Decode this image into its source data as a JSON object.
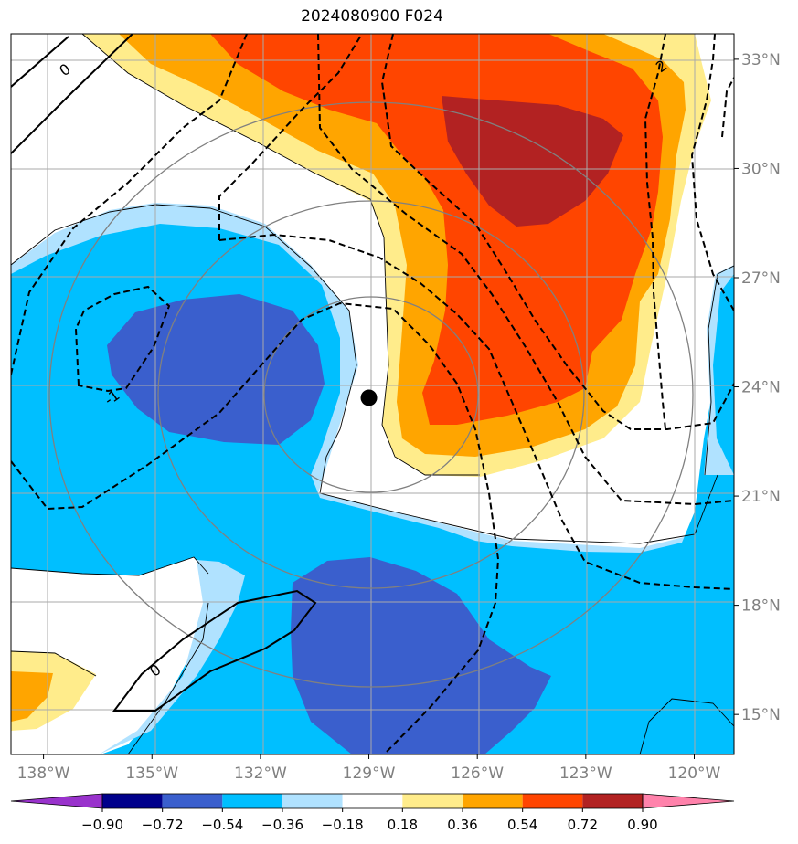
{
  "chart_data": {
    "type": "heatmap",
    "title": "2024080900 F024",
    "x_ticks": [
      "138°W",
      "135°W",
      "132°W",
      "129°W",
      "126°W",
      "123°W",
      "120°W"
    ],
    "x_tick_values": [
      -138,
      -135,
      -132,
      -129,
      -126,
      -123,
      -120
    ],
    "y_ticks": [
      "33°N",
      "30°N",
      "27°N",
      "24°N",
      "21°N",
      "18°N",
      "15°N"
    ],
    "y_tick_values": [
      33,
      30,
      27,
      24,
      21,
      18,
      15
    ],
    "xlim": [
      -138.9,
      -118.9
    ],
    "ylim": [
      13.9,
      33.7
    ],
    "grid": true,
    "colorbar": {
      "tick_labels": [
        "−0.90",
        "−0.72",
        "−0.54",
        "−0.36",
        "−0.18",
        "0.18",
        "0.36",
        "0.54",
        "0.72",
        "0.90"
      ],
      "levels": [
        -0.9,
        -0.72,
        -0.54,
        -0.36,
        -0.18,
        0.18,
        0.36,
        0.54,
        0.72,
        0.9
      ],
      "colors": [
        "#9932cc",
        "#00008b",
        "#3a5fcd",
        "#00bfff",
        "#b0e2ff",
        "#ffffff",
        "#ffec8b",
        "#ffa500",
        "#ff4500",
        "#b22222",
        "#ff82ab"
      ],
      "extend": "both"
    },
    "storm_center": {
      "lon": -129.0,
      "lat": 23.7
    },
    "contour_labels": [
      {
        "text": "0",
        "lon": -137.4,
        "lat": 32.7
      },
      {
        "text": "-1",
        "lon": -136.1,
        "lat": 23.7
      },
      {
        "text": "2",
        "lon": -120.9,
        "lat": 32.8
      },
      {
        "text": "0",
        "lon": -134.9,
        "lat": 16.2
      }
    ],
    "range_rings_km": [
      500,
      1000,
      1500
    ]
  }
}
